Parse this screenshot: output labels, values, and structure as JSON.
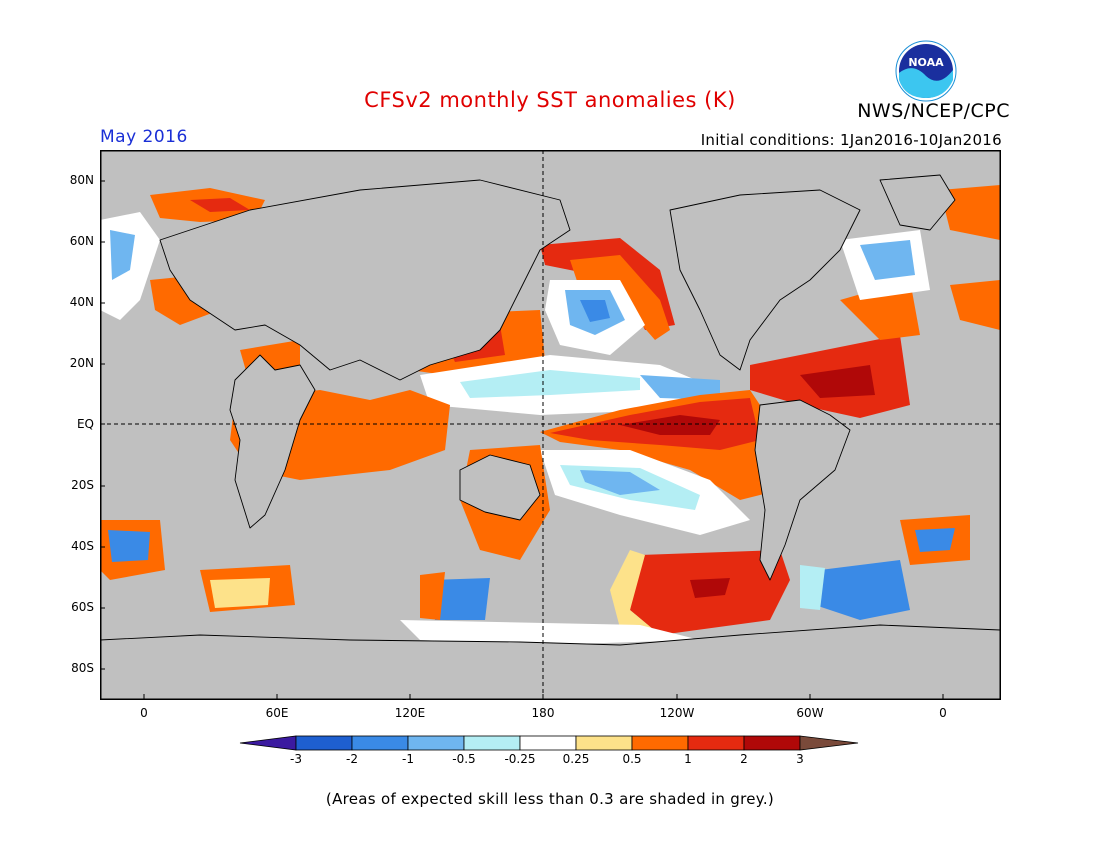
{
  "title": "CFSv2 monthly SST anomalies (K)",
  "agency": "NWS/NCEP/CPC",
  "logo_text": "NOAA",
  "month": "May 2016",
  "initial_conditions": "Initial conditions: 1Jan2016-10Jan2016",
  "lat_labels": [
    "80N",
    "60N",
    "40N",
    "20N",
    "EQ",
    "20S",
    "40S",
    "60S",
    "80S"
  ],
  "lon_labels": [
    "0",
    "60E",
    "120E",
    "180",
    "120W",
    "60W",
    "0"
  ],
  "colorbar": {
    "labels": [
      "-3",
      "-2",
      "-1",
      "-0.5",
      "-0.25",
      "0.25",
      "0.5",
      "1",
      "2",
      "3"
    ],
    "colors": [
      "#3b1aa0",
      "#1e5fd0",
      "#3a8ae6",
      "#6fb6f0",
      "#b4eef4",
      "#ffffff",
      "#fde28a",
      "#ff6a00",
      "#e52a10",
      "#b00808",
      "#7a4a3a"
    ]
  },
  "skill_note": "(Areas of expected skill less than 0.3 are shaded in grey.)",
  "colors": {
    "land": "#c0c0c0",
    "low_skill": "#c0c0c0",
    "title": "#e00000",
    "month": "#1a2fd6"
  }
}
